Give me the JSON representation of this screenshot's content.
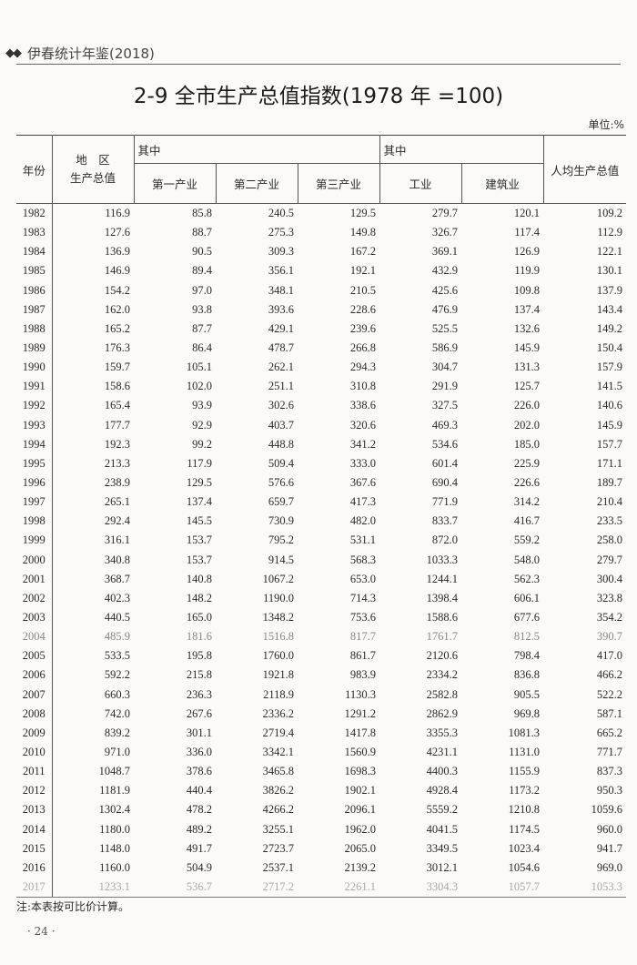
{
  "running_header": {
    "icon": "double-diamond-icon",
    "text": "伊春统计年鉴(2018)"
  },
  "title": "2-9  全市生产总值指数(1978 年 =100)",
  "unit": "单位:%",
  "table": {
    "headers": {
      "year": "年份",
      "gdp": "地　区\n生产总值",
      "group1": "其中",
      "primary": "第一产业",
      "secondary": "第二产业",
      "tertiary": "第三产业",
      "group2": "其中",
      "industry": "工业",
      "construction": "建筑业",
      "per_capita": "人均生产总值"
    },
    "rows": [
      [
        "1982",
        "116.9",
        "85.8",
        "240.5",
        "129.5",
        "279.7",
        "120.1",
        "109.2"
      ],
      [
        "1983",
        "127.6",
        "88.7",
        "275.3",
        "149.8",
        "326.7",
        "117.4",
        "112.9"
      ],
      [
        "1984",
        "136.9",
        "90.5",
        "309.3",
        "167.2",
        "369.1",
        "126.9",
        "122.1"
      ],
      [
        "1985",
        "146.9",
        "89.4",
        "356.1",
        "192.1",
        "432.9",
        "119.9",
        "130.1"
      ],
      [
        "1986",
        "154.2",
        "97.0",
        "348.1",
        "210.5",
        "425.6",
        "109.8",
        "137.9"
      ],
      [
        "1987",
        "162.0",
        "93.8",
        "393.6",
        "228.6",
        "476.9",
        "137.4",
        "143.4"
      ],
      [
        "1988",
        "165.2",
        "87.7",
        "429.1",
        "239.6",
        "525.5",
        "132.6",
        "149.2"
      ],
      [
        "1989",
        "176.3",
        "86.4",
        "478.7",
        "266.8",
        "586.9",
        "145.9",
        "150.4"
      ],
      [
        "1990",
        "159.7",
        "105.1",
        "262.1",
        "294.3",
        "304.7",
        "131.3",
        "157.9"
      ],
      [
        "1991",
        "158.6",
        "102.0",
        "251.1",
        "310.8",
        "291.9",
        "125.7",
        "141.5"
      ],
      [
        "1992",
        "165.4",
        "93.9",
        "302.6",
        "338.6",
        "327.5",
        "226.0",
        "140.6"
      ],
      [
        "1993",
        "177.7",
        "92.9",
        "403.7",
        "320.6",
        "469.3",
        "202.0",
        "145.9"
      ],
      [
        "1994",
        "192.3",
        "99.2",
        "448.8",
        "341.2",
        "534.6",
        "185.0",
        "157.7"
      ],
      [
        "1995",
        "213.3",
        "117.9",
        "509.4",
        "333.0",
        "601.4",
        "225.9",
        "171.1"
      ],
      [
        "1996",
        "238.9",
        "129.5",
        "576.6",
        "367.6",
        "690.4",
        "226.6",
        "189.7"
      ],
      [
        "1997",
        "265.1",
        "137.4",
        "659.7",
        "417.3",
        "771.9",
        "314.2",
        "210.4"
      ],
      [
        "1998",
        "292.4",
        "145.5",
        "730.9",
        "482.0",
        "833.7",
        "416.7",
        "233.5"
      ],
      [
        "1999",
        "316.1",
        "153.7",
        "795.2",
        "531.1",
        "872.0",
        "559.2",
        "258.0"
      ],
      [
        "2000",
        "340.8",
        "153.7",
        "914.5",
        "568.3",
        "1033.3",
        "548.0",
        "279.7"
      ],
      [
        "2001",
        "368.7",
        "140.8",
        "1067.2",
        "653.0",
        "1244.1",
        "562.3",
        "300.4"
      ],
      [
        "2002",
        "402.3",
        "148.2",
        "1190.0",
        "714.3",
        "1398.4",
        "606.1",
        "323.8"
      ],
      [
        "2003",
        "440.5",
        "165.0",
        "1348.2",
        "753.6",
        "1588.6",
        "677.6",
        "354.2"
      ],
      [
        "2004",
        "485.9",
        "181.6",
        "1516.8",
        "817.7",
        "1761.7",
        "812.5",
        "390.7"
      ],
      [
        "2005",
        "533.5",
        "195.8",
        "1760.0",
        "861.7",
        "2120.6",
        "798.4",
        "417.0"
      ],
      [
        "2006",
        "592.2",
        "215.8",
        "1921.8",
        "983.9",
        "2334.2",
        "836.8",
        "466.2"
      ],
      [
        "2007",
        "660.3",
        "236.3",
        "2118.9",
        "1130.3",
        "2582.8",
        "905.5",
        "522.2"
      ],
      [
        "2008",
        "742.0",
        "267.6",
        "2336.2",
        "1291.2",
        "2862.9",
        "969.8",
        "587.1"
      ],
      [
        "2009",
        "839.2",
        "301.1",
        "2719.4",
        "1417.8",
        "3355.3",
        "1081.3",
        "665.2"
      ],
      [
        "2010",
        "971.0",
        "336.0",
        "3342.1",
        "1560.9",
        "4231.1",
        "1131.0",
        "771.7"
      ],
      [
        "2011",
        "1048.7",
        "378.6",
        "3465.8",
        "1698.3",
        "4400.3",
        "1155.9",
        "837.3"
      ],
      [
        "2012",
        "1181.9",
        "440.4",
        "3826.2",
        "1902.1",
        "4928.4",
        "1173.2",
        "950.3"
      ],
      [
        "2013",
        "1302.4",
        "478.2",
        "4266.2",
        "2096.1",
        "5559.2",
        "1210.8",
        "1059.6"
      ],
      [
        "2014",
        "1180.0",
        "489.2",
        "3255.1",
        "1962.0",
        "4041.5",
        "1174.5",
        "960.0"
      ],
      [
        "2015",
        "1148.0",
        "491.7",
        "2723.7",
        "2065.0",
        "3349.5",
        "1023.4",
        "941.7"
      ],
      [
        "2016",
        "1160.0",
        "504.9",
        "2537.1",
        "2139.2",
        "3012.1",
        "1054.6",
        "969.0"
      ],
      [
        "2017",
        "1233.1",
        "536.7",
        "2717.2",
        "2261.1",
        "3304.3",
        "1057.7",
        "1053.3"
      ]
    ]
  },
  "note": "注:本表按可比价计算。",
  "page_number": "· 24 ·"
}
